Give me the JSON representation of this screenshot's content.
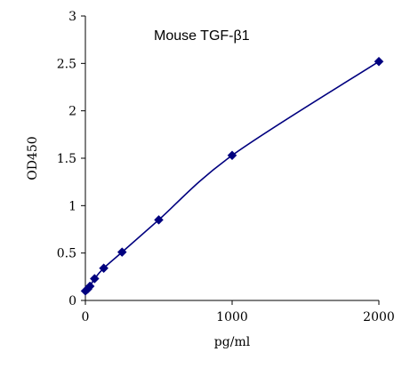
{
  "chart_data": {
    "type": "scatter",
    "title": "Mouse TGF-β1",
    "xlabel": "pg/ml",
    "ylabel": "OD450",
    "xlim": [
      0,
      2000
    ],
    "ylim": [
      0,
      3
    ],
    "xticks": [
      0,
      1000,
      2000
    ],
    "yticks": [
      0,
      0.5,
      1,
      1.5,
      2,
      2.5,
      3
    ],
    "xtick_labels": [
      "0",
      "1000",
      "2000"
    ],
    "ytick_labels": [
      "0",
      "0.5",
      "1",
      "1.5",
      "2",
      "2.5",
      "3"
    ],
    "grid": false,
    "legend": "none",
    "marker": "diamond",
    "series_color": "#00007f",
    "points": [
      {
        "x": 0,
        "y": 0.1
      },
      {
        "x": 15.6,
        "y": 0.12
      },
      {
        "x": 31.2,
        "y": 0.15
      },
      {
        "x": 62.5,
        "y": 0.23
      },
      {
        "x": 125,
        "y": 0.34
      },
      {
        "x": 250,
        "y": 0.51
      },
      {
        "x": 500,
        "y": 0.85
      },
      {
        "x": 1000,
        "y": 1.53
      },
      {
        "x": 2000,
        "y": 2.52
      }
    ]
  }
}
